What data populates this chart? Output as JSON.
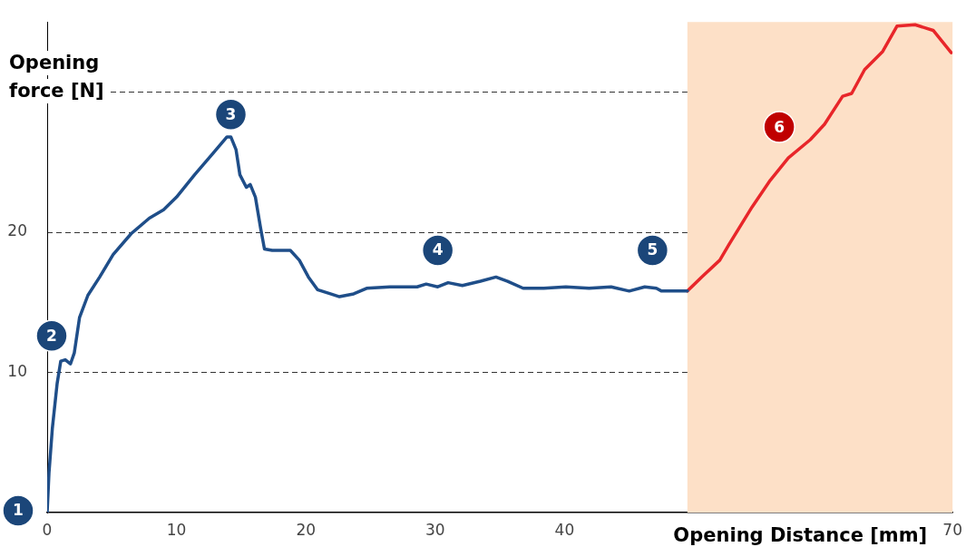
{
  "chart_data": {
    "type": "line",
    "xlabel": "Opening Distance [mm]",
    "ylabel": "Opening force [N]",
    "xlim": [
      0,
      70
    ],
    "xticks": [
      0,
      10,
      20,
      30,
      40,
      70
    ],
    "ylim": [
      0,
      35
    ],
    "yticks": [
      10,
      20,
      {
        "value": 30,
        "label": null
      }
    ],
    "grid": "y",
    "marker": "none",
    "line_style": "solid",
    "series": [
      {
        "color": "#1f4e89",
        "x": [
          0,
          0.14,
          0.4,
          0.77,
          1.05,
          1.4,
          1.8,
          2.1,
          2.5,
          3.15,
          4.06,
          5.1,
          6.5,
          7.9,
          9.0,
          10.0,
          11.4,
          12.8,
          13.9,
          14.2,
          14.6,
          14.9,
          15.4,
          15.7,
          16.1,
          16.5,
          16.8,
          17.4,
          18.8,
          19.5,
          20.2,
          20.9,
          21.9,
          22.6,
          23.7,
          24.7,
          26.5,
          28.6,
          29.3,
          30.2,
          31.0,
          32.1,
          33.5,
          34.7,
          35.6,
          36.8,
          38.4,
          40.1,
          41.9,
          43.6,
          45.0,
          46.2,
          47.1,
          47.5,
          48.9,
          49.5
        ],
        "values": [
          0,
          2.8,
          6.0,
          9.2,
          10.8,
          10.9,
          10.6,
          11.4,
          13.9,
          15.5,
          16.8,
          18.4,
          19.9,
          21.0,
          21.6,
          22.5,
          24.1,
          25.6,
          26.8,
          26.8,
          25.9,
          24.1,
          23.2,
          23.4,
          22.5,
          20.3,
          18.8,
          18.7,
          18.7,
          18.0,
          16.8,
          15.9,
          15.6,
          15.4,
          15.6,
          16.0,
          16.1,
          16.1,
          16.3,
          16.1,
          16.4,
          16.2,
          16.5,
          16.8,
          16.5,
          16.0,
          16.0,
          16.1,
          16.0,
          16.1,
          15.8,
          16.1,
          16.0,
          15.8,
          15.8,
          15.8
        ]
      },
      {
        "color": "#e8262a",
        "x": [
          49.5,
          50.6,
          52.0,
          52.7,
          54.5,
          55.9,
          57.3,
          59.0,
          60.1,
          61.5,
          62.2,
          63.2,
          64.6,
          65.7,
          67.1,
          68.5,
          69.9
        ],
        "values": [
          15.8,
          16.8,
          18.0,
          19.1,
          21.8,
          23.7,
          25.3,
          26.6,
          27.7,
          29.7,
          29.9,
          31.6,
          32.9,
          34.7,
          34.8,
          34.4,
          32.8
        ]
      }
    ],
    "bands": [
      {
        "axis": "x",
        "from": 49.5,
        "to": 70,
        "color": "#fde0c7"
      }
    ],
    "annotations": [
      {
        "text": "1",
        "x": 0,
        "y": 0
      },
      {
        "text": "2",
        "x": 0.35,
        "y": 12.6
      },
      {
        "text": "3",
        "x": 14.2,
        "y": 28.4
      },
      {
        "text": "4",
        "x": 30.2,
        "y": 18.7
      },
      {
        "text": "5",
        "x": 46.8,
        "y": 18.7
      },
      {
        "text": "6",
        "x": 56.6,
        "y": 27.5
      }
    ]
  }
}
